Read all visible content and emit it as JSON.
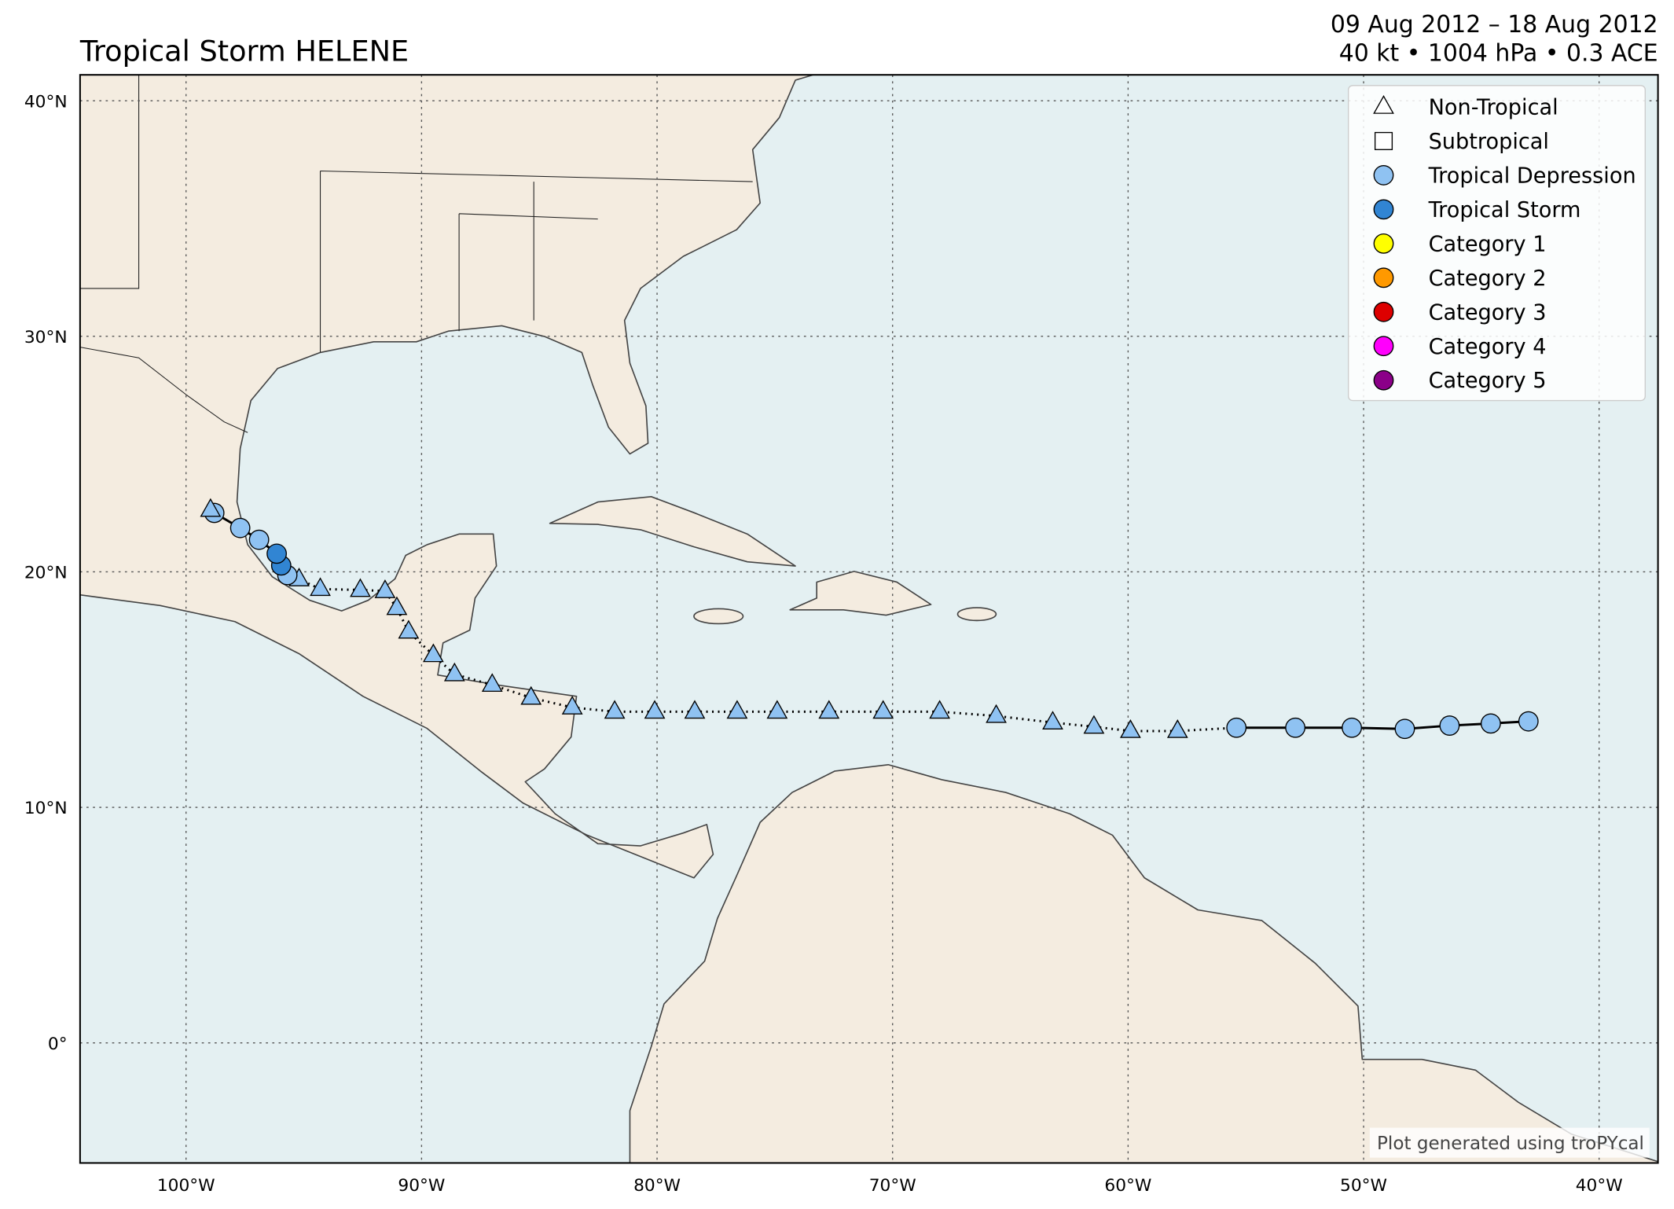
{
  "chart_data": {
    "type": "track-map",
    "title": "Tropical Storm HELENE",
    "subtitle": [
      "09 Aug 2012 – 18 Aug 2012",
      "40 kt • 1004 hPa • 0.3 ACE"
    ],
    "credit": "Plot generated using troPYcal",
    "xlim": [
      -104.5,
      -37.5
    ],
    "ylim": [
      -5.1,
      41.1
    ],
    "xticks": [
      {
        "value": -100,
        "label": "100°W"
      },
      {
        "value": -90,
        "label": "90°W"
      },
      {
        "value": -80,
        "label": "80°W"
      },
      {
        "value": -70,
        "label": "70°W"
      },
      {
        "value": -60,
        "label": "60°W"
      },
      {
        "value": -50,
        "label": "50°W"
      },
      {
        "value": -40,
        "label": "40°W"
      }
    ],
    "yticks": [
      {
        "value": 0,
        "label": "0°"
      },
      {
        "value": 10,
        "label": "10°N"
      },
      {
        "value": 20,
        "label": "20°N"
      },
      {
        "value": 30,
        "label": "30°N"
      },
      {
        "value": 40,
        "label": "40°N"
      }
    ],
    "grid": true,
    "legend_position": "upper right",
    "legend": [
      {
        "name": "Non-Tropical",
        "marker": "triangle",
        "color": "#ffffff"
      },
      {
        "name": "Subtropical",
        "marker": "square",
        "color": "#ffffff"
      },
      {
        "name": "Tropical Depression",
        "marker": "circle",
        "color": "#8fc2f2"
      },
      {
        "name": "Tropical Storm",
        "marker": "circle",
        "color": "#3185d3"
      },
      {
        "name": "Category 1",
        "marker": "circle",
        "color": "#ffff00"
      },
      {
        "name": "Category 2",
        "marker": "circle",
        "color": "#ff9900"
      },
      {
        "name": "Category 3",
        "marker": "circle",
        "color": "#dd0000"
      },
      {
        "name": "Category 4",
        "marker": "circle",
        "color": "#ff00fc"
      },
      {
        "name": "Category 5",
        "marker": "circle",
        "color": "#8b0088"
      }
    ],
    "track": {
      "lon": [
        -43.0,
        -44.6,
        -46.35,
        -48.25,
        -50.5,
        -52.9,
        -55.4,
        -57.9,
        -59.9,
        -61.45,
        -63.2,
        -65.6,
        -68.0,
        -70.4,
        -72.7,
        -74.9,
        -76.6,
        -78.4,
        -80.1,
        -81.8,
        -83.6,
        -85.35,
        -87.0,
        -88.6,
        -89.5,
        -90.55,
        -91.05,
        -91.55,
        -92.6,
        -94.3,
        -95.2,
        -95.7,
        -95.96,
        -96.15,
        -96.9,
        -97.7,
        -98.8,
        -98.96
      ],
      "lat": [
        13.65,
        13.56,
        13.47,
        13.33,
        13.38,
        13.38,
        13.38,
        13.24,
        13.24,
        13.42,
        13.6,
        13.88,
        14.06,
        14.06,
        14.06,
        14.06,
        14.06,
        14.06,
        14.06,
        14.06,
        14.24,
        14.65,
        15.2,
        15.65,
        16.46,
        17.46,
        18.46,
        19.18,
        19.23,
        19.27,
        19.68,
        19.86,
        20.27,
        20.77,
        21.36,
        21.86,
        22.5,
        22.63
      ],
      "stage": [
        "Tropical Depression",
        "Tropical Depression",
        "Tropical Depression",
        "Tropical Depression",
        "Tropical Depression",
        "Tropical Depression",
        "Tropical Depression",
        "Non-Tropical",
        "Non-Tropical",
        "Non-Tropical",
        "Non-Tropical",
        "Non-Tropical",
        "Non-Tropical",
        "Non-Tropical",
        "Non-Tropical",
        "Non-Tropical",
        "Non-Tropical",
        "Non-Tropical",
        "Non-Tropical",
        "Non-Tropical",
        "Non-Tropical",
        "Non-Tropical",
        "Non-Tropical",
        "Non-Tropical",
        "Non-Tropical",
        "Non-Tropical",
        "Non-Tropical",
        "Non-Tropical",
        "Non-Tropical",
        "Non-Tropical",
        "Non-Tropical",
        "Tropical Depression",
        "Tropical Storm",
        "Tropical Storm",
        "Tropical Depression",
        "Tropical Depression",
        "Tropical Depression",
        "Non-Tropical"
      ],
      "intensity": [
        "Tropical Depression",
        "Tropical Depression",
        "Tropical Depression",
        "Tropical Depression",
        "Tropical Depression",
        "Tropical Depression",
        "Tropical Depression",
        "Tropical Depression",
        "Tropical Depression",
        "Tropical Depression",
        "Tropical Depression",
        "Tropical Depression",
        "Tropical Depression",
        "Tropical Depression",
        "Tropical Depression",
        "Tropical Depression",
        "Tropical Depression",
        "Tropical Depression",
        "Tropical Depression",
        "Tropical Depression",
        "Tropical Depression",
        "Tropical Depression",
        "Tropical Depression",
        "Tropical Depression",
        "Tropical Depression",
        "Tropical Depression",
        "Tropical Depression",
        "Tropical Depression",
        "Tropical Depression",
        "Tropical Depression",
        "Tropical Depression",
        "Tropical Depression",
        "Tropical Storm",
        "Tropical Storm",
        "Tropical Depression",
        "Tropical Depression",
        "Tropical Depression",
        "Tropical Depression"
      ]
    }
  }
}
